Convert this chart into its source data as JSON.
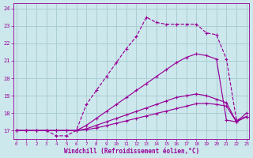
{
  "xlabel": "Windchill (Refroidissement éolien,°C)",
  "bg_color": "#cce8ec",
  "grid_color": "#aacdd4",
  "line_color": "#990099",
  "xlim": [
    -0.3,
    23.3
  ],
  "ylim": [
    16.5,
    24.3
  ],
  "xticks": [
    0,
    1,
    2,
    3,
    4,
    5,
    6,
    7,
    8,
    9,
    10,
    11,
    12,
    13,
    14,
    15,
    16,
    17,
    18,
    19,
    20,
    21,
    22,
    23
  ],
  "yticks": [
    17,
    18,
    19,
    20,
    21,
    22,
    23,
    24
  ],
  "lines": [
    {
      "x": [
        0,
        1,
        2,
        3,
        4,
        5,
        6,
        7,
        8,
        9,
        10,
        11,
        12,
        13,
        14,
        15,
        16,
        17,
        18,
        19,
        20,
        21,
        22,
        23
      ],
      "y": [
        17.0,
        17.0,
        17.0,
        17.0,
        16.7,
        16.7,
        17.0,
        18.5,
        19.3,
        20.1,
        20.9,
        21.7,
        22.4,
        23.5,
        23.2,
        23.1,
        23.1,
        23.1,
        23.1,
        22.6,
        22.5,
        21.1,
        17.6,
        17.8
      ],
      "ls": "--"
    },
    {
      "x": [
        0,
        1,
        2,
        3,
        4,
        5,
        6,
        7,
        8,
        9,
        10,
        11,
        12,
        13,
        14,
        15,
        16,
        17,
        18,
        19,
        20,
        21,
        22,
        23
      ],
      "y": [
        17.0,
        17.0,
        17.0,
        17.0,
        17.0,
        17.0,
        17.0,
        17.3,
        17.7,
        18.1,
        18.5,
        18.9,
        19.3,
        19.7,
        20.1,
        20.5,
        20.9,
        21.2,
        21.4,
        21.3,
        21.1,
        17.6,
        17.5,
        18.0
      ],
      "ls": "-"
    },
    {
      "x": [
        0,
        1,
        2,
        3,
        4,
        5,
        6,
        7,
        8,
        9,
        10,
        11,
        12,
        13,
        14,
        15,
        16,
        17,
        18,
        19,
        20,
        21,
        22,
        23
      ],
      "y": [
        17.0,
        17.0,
        17.0,
        17.0,
        17.0,
        17.0,
        17.0,
        17.1,
        17.3,
        17.5,
        17.7,
        17.9,
        18.1,
        18.3,
        18.5,
        18.7,
        18.9,
        19.0,
        19.1,
        19.0,
        18.8,
        18.6,
        17.5,
        17.8
      ],
      "ls": "-"
    },
    {
      "x": [
        0,
        1,
        2,
        3,
        4,
        5,
        6,
        7,
        8,
        9,
        10,
        11,
        12,
        13,
        14,
        15,
        16,
        17,
        18,
        19,
        20,
        21,
        22,
        23
      ],
      "y": [
        17.0,
        17.0,
        17.0,
        17.0,
        17.0,
        17.0,
        17.0,
        17.05,
        17.15,
        17.28,
        17.42,
        17.56,
        17.7,
        17.84,
        17.98,
        18.12,
        18.26,
        18.4,
        18.54,
        18.56,
        18.5,
        18.4,
        17.5,
        17.8
      ],
      "ls": "-"
    }
  ]
}
